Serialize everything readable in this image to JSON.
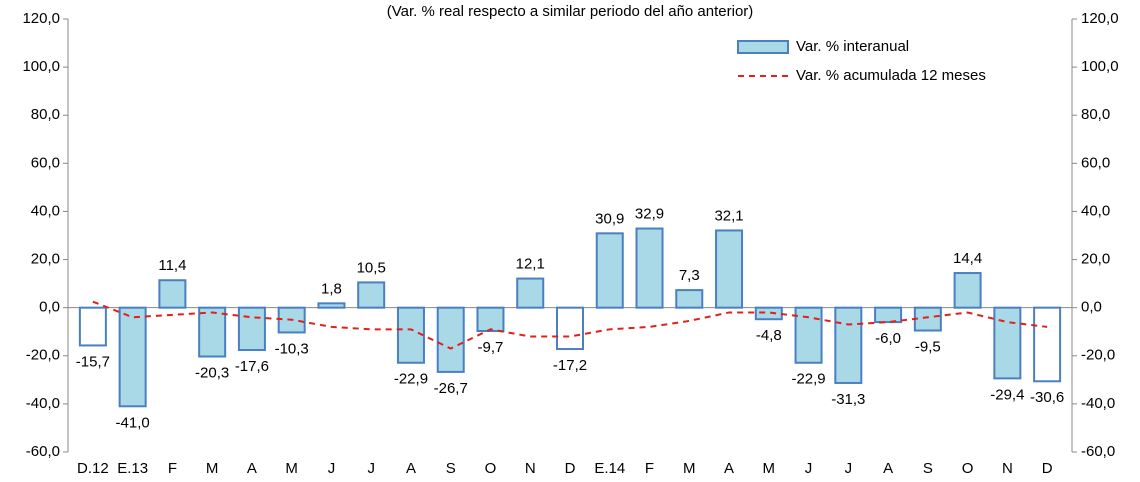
{
  "chart_data": {
    "type": "bar-line",
    "subtitle": "(Var. % real respecto a similar periodo del año anterior)",
    "categories": [
      "D.12",
      "E.13",
      "F",
      "M",
      "A",
      "M",
      "J",
      "J",
      "A",
      "S",
      "O",
      "N",
      "D",
      "E.14",
      "F",
      "M",
      "A",
      "M",
      "J",
      "J",
      "A",
      "S",
      "O",
      "N",
      "D"
    ],
    "series": [
      {
        "name": "Var. % interanual",
        "type": "bar",
        "color": "#a9d8e6",
        "edge_color": "#4a7fc1",
        "colors": [
          "#ffffff",
          "#a9d8e6",
          "#a9d8e6",
          "#a9d8e6",
          "#a9d8e6",
          "#a9d8e6",
          "#a9d8e6",
          "#a9d8e6",
          "#a9d8e6",
          "#a9d8e6",
          "#a9d8e6",
          "#a9d8e6",
          "#ffffff",
          "#a9d8e6",
          "#a9d8e6",
          "#a9d8e6",
          "#a9d8e6",
          "#a9d8e6",
          "#a9d8e6",
          "#a9d8e6",
          "#a9d8e6",
          "#a9d8e6",
          "#a9d8e6",
          "#a9d8e6",
          "#ffffff"
        ],
        "values": [
          -15.7,
          -41.0,
          11.4,
          -20.3,
          -17.6,
          -10.3,
          1.8,
          10.5,
          -22.9,
          -26.7,
          -9.7,
          12.1,
          -17.2,
          30.9,
          32.9,
          7.3,
          32.1,
          -4.8,
          -22.9,
          -31.3,
          -6.0,
          -9.5,
          14.4,
          -29.4,
          -30.6
        ],
        "value_labels": [
          "-15,7",
          "-41,0",
          "11,4",
          "-20,3",
          "-17,6",
          "-10,3",
          "1,8",
          "10,5",
          "-22,9",
          "-26,7",
          "-9,7",
          "12,1",
          "-17,2",
          "30,9",
          "32,9",
          "7,3",
          "32,1",
          "-4,8",
          "-22,9",
          "-31,3",
          "-6,0",
          "-9,5",
          "14,4",
          "-29,4",
          "-30,6"
        ]
      },
      {
        "name": "Var. % acumulada 12 meses",
        "type": "line",
        "color": "#e0201b",
        "values": [
          2.5,
          -4,
          -3,
          -2,
          -4,
          -5,
          -8,
          -9,
          -9,
          -17,
          -9,
          -12,
          -12,
          -9,
          -8,
          -5.5,
          -2,
          -2,
          -4,
          -7,
          -6,
          -4,
          -2,
          -6,
          -8
        ]
      }
    ],
    "ylim": [
      -60,
      120
    ],
    "yticks": [
      {
        "value": -60,
        "label": "-60,0"
      },
      {
        "value": -40,
        "label": "-40,0"
      },
      {
        "value": -20,
        "label": "-20,0"
      },
      {
        "value": 0,
        "label": "0,0"
      },
      {
        "value": 20,
        "label": "20,0"
      },
      {
        "value": 40,
        "label": "40,0"
      },
      {
        "value": 60,
        "label": "60,0"
      },
      {
        "value": 80,
        "label": "80,0"
      },
      {
        "value": 100,
        "label": "100,0"
      },
      {
        "value": 120,
        "label": "120,0"
      }
    ],
    "y2lim": [
      -60,
      120
    ],
    "y2ticks": [
      {
        "value": -60,
        "label": "-60,0"
      },
      {
        "value": -40,
        "label": "-40,0"
      },
      {
        "value": -20,
        "label": "-20,0"
      },
      {
        "value": 0,
        "label": "0,0"
      },
      {
        "value": 20,
        "label": "20,0"
      },
      {
        "value": 40,
        "label": "40,0"
      },
      {
        "value": 60,
        "label": "60,0"
      },
      {
        "value": 80,
        "label": "80,0"
      },
      {
        "value": 100,
        "label": "100,0"
      },
      {
        "value": 120,
        "label": "120,0"
      }
    ],
    "legend": "top-right"
  }
}
